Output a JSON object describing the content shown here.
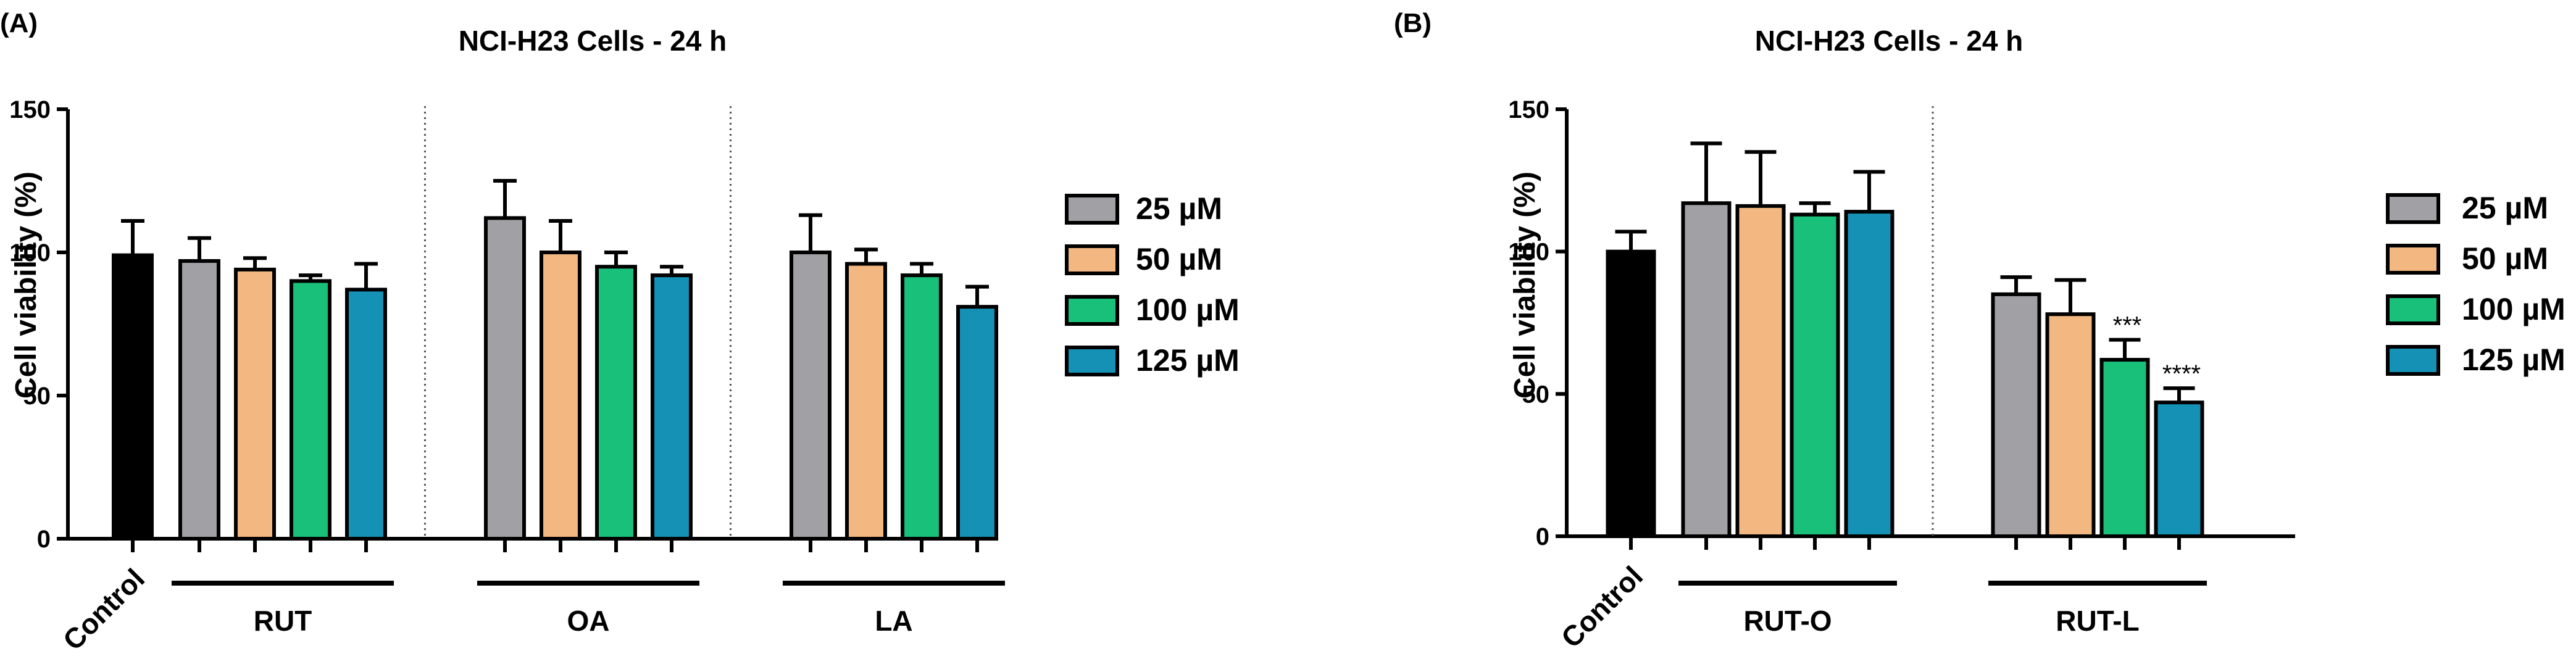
{
  "chart_data": [
    {
      "panel_label": "(A)",
      "type": "bar",
      "title": "NCI-H23 Cells - 24 h",
      "ylabel": "Cell viability (%)",
      "ylim": [
        0,
        150
      ],
      "yticks": [
        "0",
        "50",
        "100",
        "150"
      ],
      "control": {
        "label": "Control",
        "value": 99,
        "error": 12,
        "color": "#000000"
      },
      "groups": [
        {
          "label": "RUT",
          "values": [
            97,
            94,
            90,
            87
          ],
          "errors": [
            8,
            4,
            2,
            9
          ],
          "annotations": [
            "",
            "",
            "",
            ""
          ]
        },
        {
          "label": "OA",
          "values": [
            112,
            100,
            95,
            92
          ],
          "errors": [
            13,
            11,
            5,
            3
          ],
          "annotations": [
            "",
            "",
            "",
            ""
          ]
        },
        {
          "label": "LA",
          "values": [
            100,
            96,
            92,
            81
          ],
          "errors": [
            13,
            5,
            4,
            7
          ],
          "annotations": [
            "",
            "",
            "",
            ""
          ]
        }
      ],
      "legend": [
        {
          "label": "25 µM",
          "color": "#a1a1a5"
        },
        {
          "label": "50 µM",
          "color": "#f3b882"
        },
        {
          "label": "100 µM",
          "color": "#18c07a"
        },
        {
          "label": "125 µM",
          "color": "#1591b5"
        }
      ]
    },
    {
      "panel_label": "(B)",
      "type": "bar",
      "title": "NCI-H23 Cells - 24 h",
      "ylabel": "Cell viability (%)",
      "ylim": [
        0,
        150
      ],
      "yticks": [
        "0",
        "50",
        "100",
        "150"
      ],
      "control": {
        "label": "Control",
        "value": 100,
        "error": 7,
        "color": "#000000"
      },
      "groups": [
        {
          "label": "RUT-O",
          "values": [
            117,
            116,
            113,
            114
          ],
          "errors": [
            21,
            19,
            4,
            14
          ],
          "annotations": [
            "",
            "",
            "",
            ""
          ]
        },
        {
          "label": "RUT-L",
          "values": [
            85,
            78,
            62,
            47
          ],
          "errors": [
            6,
            12,
            7,
            5
          ],
          "annotations": [
            "",
            "",
            "***",
            "****"
          ]
        }
      ],
      "legend": [
        {
          "label": "25 µM",
          "color": "#a1a1a5"
        },
        {
          "label": "50 µM",
          "color": "#f3b882"
        },
        {
          "label": "100 µM",
          "color": "#18c07a"
        },
        {
          "label": "125 µM",
          "color": "#1591b5"
        }
      ]
    }
  ]
}
